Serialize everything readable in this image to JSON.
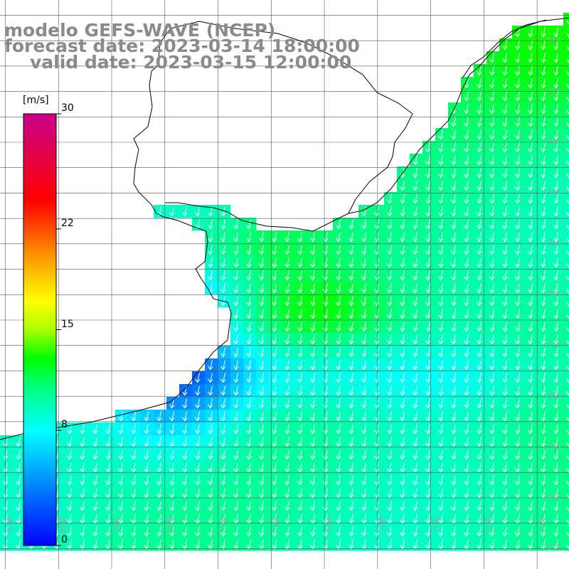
{
  "title": {
    "line1": "modelo GEFS-WAVE (NCEP)",
    "line2": "forecast date: 2023-03-14 18:00:00",
    "line3": "valid date: 2023-03-15 12:00:00"
  },
  "colorbar": {
    "unit": "[m/s]",
    "min": 0,
    "max": 30,
    "ticks": [
      "30",
      "22",
      "15",
      "8",
      "0"
    ],
    "tick_values": [
      30,
      22,
      15,
      8,
      0
    ],
    "stops": [
      {
        "value": 0,
        "color": "#0000ff"
      },
      {
        "value": 4,
        "color": "#0080ff"
      },
      {
        "value": 8,
        "color": "#00ffff"
      },
      {
        "value": 11,
        "color": "#00ff80"
      },
      {
        "value": 13,
        "color": "#00ff00"
      },
      {
        "value": 15,
        "color": "#aaff00"
      },
      {
        "value": 17,
        "color": "#ffff00"
      },
      {
        "value": 20,
        "color": "#ff9900"
      },
      {
        "value": 24,
        "color": "#ff0000"
      },
      {
        "value": 30,
        "color": "#c8008a"
      }
    ]
  },
  "grid": {
    "lat_labels": [
      "31S",
      "32S",
      "33S",
      "34S",
      "35S",
      "36S",
      "37S",
      "38S",
      "39S",
      "40S",
      "41S"
    ],
    "lat_values": [
      -31,
      -32,
      -33,
      -34,
      -35,
      -36,
      -37,
      -38,
      -39,
      -40,
      -41
    ],
    "lon_labels": [
      "61W",
      "60W",
      "59W",
      "58W",
      "57W",
      "56W",
      "55W",
      "54W",
      "53W",
      "52W",
      "51W"
    ],
    "lon_values": [
      -61,
      -60,
      -59,
      -58,
      -57,
      -56,
      -55,
      -54,
      -53,
      -52,
      -51
    ],
    "lon_range": [
      -61.1,
      -50.4
    ],
    "lat_range": [
      -30.2,
      -41.4
    ]
  },
  "wind": {
    "direction": "southward",
    "field_description_regions": {
      "coastal_low_speed_ms": 4,
      "offshore_speed_ms": 10,
      "northeast_max_speed_ms": 12
    }
  },
  "colors": {
    "land": "#ffffff",
    "coast": "#000000",
    "grid": "#555555",
    "arrow": "#ffffff",
    "title": "#8a8a8a"
  }
}
